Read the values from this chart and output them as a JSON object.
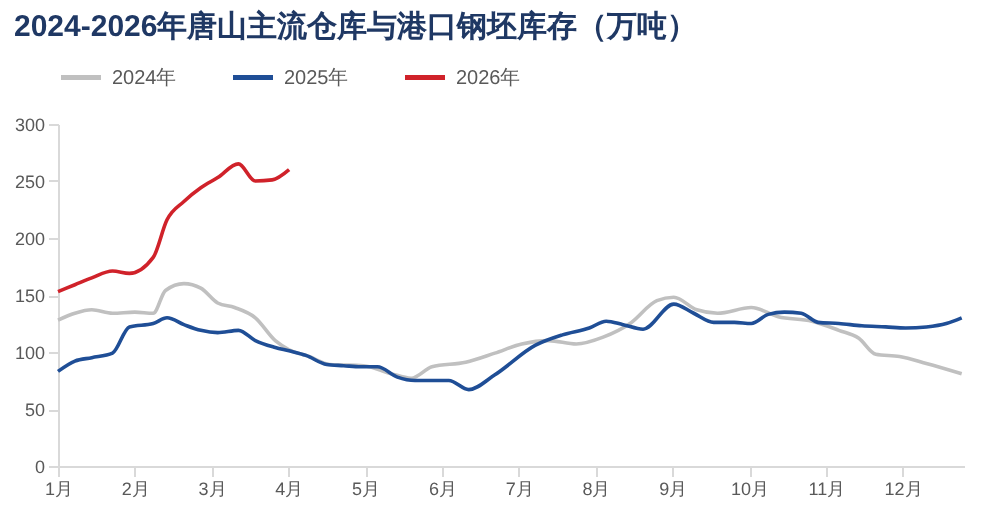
{
  "chart_data": {
    "type": "line",
    "title": "2024-2026年唐山主流仓库与港口钢坯库存（万吨）",
    "xlim": [
      1,
      12.8
    ],
    "xticks": [
      {
        "value": 1,
        "label": "1月"
      },
      {
        "value": 2,
        "label": "2月"
      },
      {
        "value": 3,
        "label": "3月"
      },
      {
        "value": 4,
        "label": "4月"
      },
      {
        "value": 5,
        "label": "5月"
      },
      {
        "value": 6,
        "label": "6月"
      },
      {
        "value": 7,
        "label": "7月"
      },
      {
        "value": 8,
        "label": "8月"
      },
      {
        "value": 9,
        "label": "9月"
      },
      {
        "value": 10,
        "label": "10月"
      },
      {
        "value": 11,
        "label": "11月"
      },
      {
        "value": 12,
        "label": "12月"
      }
    ],
    "ylim": [
      0,
      300
    ],
    "yticks": [
      0,
      50,
      100,
      150,
      200,
      250,
      300
    ],
    "grid": false,
    "legend": "top",
    "line_style": "solid",
    "series": [
      {
        "name": "2024年",
        "color": "#c0c0c0",
        "x": [
          1,
          1.22,
          1.44,
          1.71,
          2,
          2.24,
          2.4,
          2.64,
          2.86,
          3.08,
          3.3,
          3.57,
          3.83,
          4.01,
          4.27,
          4.54,
          4.98,
          5.34,
          5.6,
          5.87,
          6.31,
          6.69,
          7.04,
          7.39,
          7.75,
          8.1,
          8.45,
          8.8,
          9.02,
          9.32,
          9.59,
          10.03,
          10.38,
          10.82,
          11.17,
          11.43,
          11.65,
          11.96,
          12.31,
          12.77
        ],
        "values": [
          128,
          134,
          137,
          134,
          135,
          134,
          154,
          160,
          156,
          143,
          139,
          130,
          110,
          102,
          96,
          89,
          88,
          81,
          77,
          87,
          91,
          99,
          107,
          110,
          107,
          113,
          125,
          145,
          148,
          137,
          134,
          139,
          131,
          127,
          119,
          112,
          98,
          96,
          90,
          81
        ]
      },
      {
        "name": "2025年",
        "color": "#1f4e96",
        "x": [
          1,
          1.22,
          1.44,
          1.71,
          1.93,
          2.24,
          2.42,
          2.64,
          2.86,
          3.08,
          3.35,
          3.57,
          3.83,
          4.01,
          4.23,
          4.5,
          4.72,
          4.94,
          5.16,
          5.42,
          5.65,
          5.87,
          6.09,
          6.35,
          6.69,
          7.22,
          7.57,
          7.92,
          8.14,
          8.36,
          8.62,
          9.02,
          9.28,
          9.54,
          9.81,
          10.03,
          10.25,
          10.46,
          10.68,
          10.9,
          11.17,
          11.47,
          11.78,
          12.04,
          12.31,
          12.57,
          12.77
        ],
        "values": [
          83,
          92,
          95,
          99,
          122,
          125,
          130,
          124,
          119,
          117,
          119,
          110,
          104,
          101,
          97,
          89,
          88,
          87,
          87,
          78,
          75,
          75,
          75,
          67,
          80,
          106,
          115,
          121,
          127,
          124,
          120,
          142,
          134,
          126,
          126,
          125,
          133,
          135,
          134,
          126,
          125,
          123,
          122,
          121,
          122,
          125,
          130
        ]
      },
      {
        "name": "2026年",
        "color": "#d0222a",
        "x": [
          1,
          1.22,
          1.44,
          1.71,
          1.93,
          2.24,
          2.42,
          2.64,
          2.86,
          3.08,
          3.35,
          3.57,
          3.79,
          4.01
        ],
        "values": [
          153,
          159,
          165,
          171,
          169,
          183,
          216,
          232,
          244,
          253,
          265,
          250,
          251,
          260
        ]
      }
    ]
  }
}
